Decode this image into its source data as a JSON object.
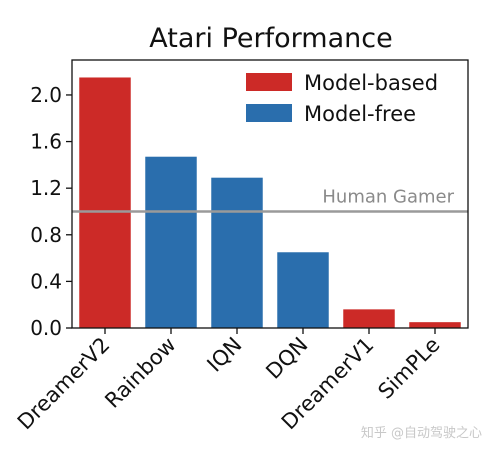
{
  "chart_data": {
    "type": "bar",
    "title": "Atari Performance",
    "xlabel": "",
    "ylabel": "",
    "categories": [
      "DreamerV2",
      "Rainbow",
      "IQN",
      "DQN",
      "DreamerV1",
      "SimPLe"
    ],
    "values": [
      2.15,
      1.47,
      1.29,
      0.65,
      0.16,
      0.05
    ],
    "groups": [
      "Model-based",
      "Model-free",
      "Model-free",
      "Model-free",
      "Model-based",
      "Model-based"
    ],
    "ylim": [
      0,
      2.3
    ],
    "yticks": [
      0.0,
      0.4,
      0.8,
      1.2,
      1.6,
      2.0
    ],
    "ytick_labels": [
      "0.0",
      "0.4",
      "0.8",
      "1.2",
      "1.6",
      "2.0"
    ],
    "grid": false,
    "legend": {
      "position": "top-right",
      "entries": [
        {
          "label": "Model-based",
          "color": "#cc2a27"
        },
        {
          "label": "Model-free",
          "color": "#2a6ead"
        }
      ]
    },
    "reference_line": {
      "value": 1.0,
      "label": "Human Gamer",
      "color": "#9a9a9a"
    }
  },
  "watermark": "知乎 @自动驾驶之心"
}
